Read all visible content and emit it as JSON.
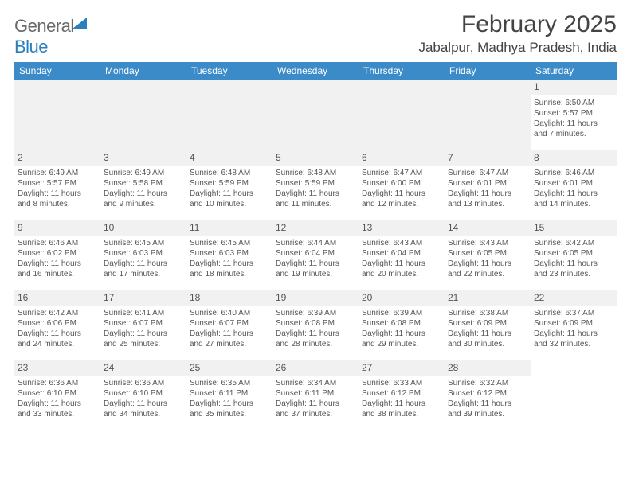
{
  "brand": {
    "part1": "General",
    "part2": "Blue"
  },
  "title": "February 2025",
  "location": "Jabalpur, Madhya Pradesh, India",
  "dayNames": [
    "Sunday",
    "Monday",
    "Tuesday",
    "Wednesday",
    "Thursday",
    "Friday",
    "Saturday"
  ],
  "colors": {
    "header_bg": "#3b8bc9",
    "header_text": "#ffffff",
    "rule": "#3b8bc9",
    "daynum_bg": "#f1f1f1",
    "text": "#444444",
    "brand_gray": "#6a6a6a",
    "brand_blue": "#2a7fbf"
  },
  "weeks": [
    [
      null,
      null,
      null,
      null,
      null,
      null,
      {
        "n": "1",
        "sunrise": "Sunrise: 6:50 AM",
        "sunset": "Sunset: 5:57 PM",
        "day1": "Daylight: 11 hours",
        "day2": "and 7 minutes."
      }
    ],
    [
      {
        "n": "2",
        "sunrise": "Sunrise: 6:49 AM",
        "sunset": "Sunset: 5:57 PM",
        "day1": "Daylight: 11 hours",
        "day2": "and 8 minutes."
      },
      {
        "n": "3",
        "sunrise": "Sunrise: 6:49 AM",
        "sunset": "Sunset: 5:58 PM",
        "day1": "Daylight: 11 hours",
        "day2": "and 9 minutes."
      },
      {
        "n": "4",
        "sunrise": "Sunrise: 6:48 AM",
        "sunset": "Sunset: 5:59 PM",
        "day1": "Daylight: 11 hours",
        "day2": "and 10 minutes."
      },
      {
        "n": "5",
        "sunrise": "Sunrise: 6:48 AM",
        "sunset": "Sunset: 5:59 PM",
        "day1": "Daylight: 11 hours",
        "day2": "and 11 minutes."
      },
      {
        "n": "6",
        "sunrise": "Sunrise: 6:47 AM",
        "sunset": "Sunset: 6:00 PM",
        "day1": "Daylight: 11 hours",
        "day2": "and 12 minutes."
      },
      {
        "n": "7",
        "sunrise": "Sunrise: 6:47 AM",
        "sunset": "Sunset: 6:01 PM",
        "day1": "Daylight: 11 hours",
        "day2": "and 13 minutes."
      },
      {
        "n": "8",
        "sunrise": "Sunrise: 6:46 AM",
        "sunset": "Sunset: 6:01 PM",
        "day1": "Daylight: 11 hours",
        "day2": "and 14 minutes."
      }
    ],
    [
      {
        "n": "9",
        "sunrise": "Sunrise: 6:46 AM",
        "sunset": "Sunset: 6:02 PM",
        "day1": "Daylight: 11 hours",
        "day2": "and 16 minutes."
      },
      {
        "n": "10",
        "sunrise": "Sunrise: 6:45 AM",
        "sunset": "Sunset: 6:03 PM",
        "day1": "Daylight: 11 hours",
        "day2": "and 17 minutes."
      },
      {
        "n": "11",
        "sunrise": "Sunrise: 6:45 AM",
        "sunset": "Sunset: 6:03 PM",
        "day1": "Daylight: 11 hours",
        "day2": "and 18 minutes."
      },
      {
        "n": "12",
        "sunrise": "Sunrise: 6:44 AM",
        "sunset": "Sunset: 6:04 PM",
        "day1": "Daylight: 11 hours",
        "day2": "and 19 minutes."
      },
      {
        "n": "13",
        "sunrise": "Sunrise: 6:43 AM",
        "sunset": "Sunset: 6:04 PM",
        "day1": "Daylight: 11 hours",
        "day2": "and 20 minutes."
      },
      {
        "n": "14",
        "sunrise": "Sunrise: 6:43 AM",
        "sunset": "Sunset: 6:05 PM",
        "day1": "Daylight: 11 hours",
        "day2": "and 22 minutes."
      },
      {
        "n": "15",
        "sunrise": "Sunrise: 6:42 AM",
        "sunset": "Sunset: 6:05 PM",
        "day1": "Daylight: 11 hours",
        "day2": "and 23 minutes."
      }
    ],
    [
      {
        "n": "16",
        "sunrise": "Sunrise: 6:42 AM",
        "sunset": "Sunset: 6:06 PM",
        "day1": "Daylight: 11 hours",
        "day2": "and 24 minutes."
      },
      {
        "n": "17",
        "sunrise": "Sunrise: 6:41 AM",
        "sunset": "Sunset: 6:07 PM",
        "day1": "Daylight: 11 hours",
        "day2": "and 25 minutes."
      },
      {
        "n": "18",
        "sunrise": "Sunrise: 6:40 AM",
        "sunset": "Sunset: 6:07 PM",
        "day1": "Daylight: 11 hours",
        "day2": "and 27 minutes."
      },
      {
        "n": "19",
        "sunrise": "Sunrise: 6:39 AM",
        "sunset": "Sunset: 6:08 PM",
        "day1": "Daylight: 11 hours",
        "day2": "and 28 minutes."
      },
      {
        "n": "20",
        "sunrise": "Sunrise: 6:39 AM",
        "sunset": "Sunset: 6:08 PM",
        "day1": "Daylight: 11 hours",
        "day2": "and 29 minutes."
      },
      {
        "n": "21",
        "sunrise": "Sunrise: 6:38 AM",
        "sunset": "Sunset: 6:09 PM",
        "day1": "Daylight: 11 hours",
        "day2": "and 30 minutes."
      },
      {
        "n": "22",
        "sunrise": "Sunrise: 6:37 AM",
        "sunset": "Sunset: 6:09 PM",
        "day1": "Daylight: 11 hours",
        "day2": "and 32 minutes."
      }
    ],
    [
      {
        "n": "23",
        "sunrise": "Sunrise: 6:36 AM",
        "sunset": "Sunset: 6:10 PM",
        "day1": "Daylight: 11 hours",
        "day2": "and 33 minutes."
      },
      {
        "n": "24",
        "sunrise": "Sunrise: 6:36 AM",
        "sunset": "Sunset: 6:10 PM",
        "day1": "Daylight: 11 hours",
        "day2": "and 34 minutes."
      },
      {
        "n": "25",
        "sunrise": "Sunrise: 6:35 AM",
        "sunset": "Sunset: 6:11 PM",
        "day1": "Daylight: 11 hours",
        "day2": "and 35 minutes."
      },
      {
        "n": "26",
        "sunrise": "Sunrise: 6:34 AM",
        "sunset": "Sunset: 6:11 PM",
        "day1": "Daylight: 11 hours",
        "day2": "and 37 minutes."
      },
      {
        "n": "27",
        "sunrise": "Sunrise: 6:33 AM",
        "sunset": "Sunset: 6:12 PM",
        "day1": "Daylight: 11 hours",
        "day2": "and 38 minutes."
      },
      {
        "n": "28",
        "sunrise": "Sunrise: 6:32 AM",
        "sunset": "Sunset: 6:12 PM",
        "day1": "Daylight: 11 hours",
        "day2": "and 39 minutes."
      },
      null
    ]
  ]
}
